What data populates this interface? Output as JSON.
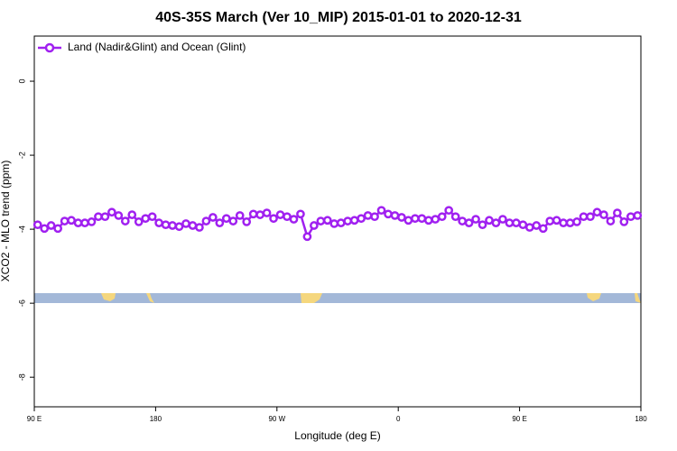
{
  "chart_data": {
    "type": "line",
    "title": "40S-35S March (Ver 10_MIP)   2015-01-01 to 2020-12-31",
    "xlabel": "Longitude (deg E)",
    "ylabel": "XCO2 - MLO trend (ppm)",
    "xlim": [
      90,
      540
    ],
    "ylim": [
      -8.8,
      1.22
    ],
    "xticks": [
      {
        "value": 90,
        "label": "90 E"
      },
      {
        "value": 180,
        "label": "180"
      },
      {
        "value": 270,
        "label": "90 W"
      },
      {
        "value": 360,
        "label": "0"
      },
      {
        "value": 450,
        "label": "90 E"
      },
      {
        "value": 540,
        "label": "180"
      }
    ],
    "yticks": [
      0,
      -2,
      -4,
      -6,
      -8
    ],
    "legend": "upper left",
    "x": [
      92.5,
      97.5,
      102.5,
      107.5,
      112.5,
      117.5,
      122.5,
      127.5,
      132.5,
      137.5,
      142.5,
      147.5,
      152.5,
      157.5,
      162.5,
      167.5,
      172.5,
      177.5,
      182.5,
      187.5,
      192.5,
      197.5,
      202.5,
      207.5,
      212.5,
      217.5,
      222.5,
      227.5,
      232.5,
      237.5,
      242.5,
      247.5,
      252.5,
      257.5,
      262.5,
      267.5,
      272.5,
      277.5,
      282.5,
      287.5,
      292.5,
      297.5,
      302.5,
      307.5,
      312.5,
      317.5,
      322.5,
      327.5,
      332.5,
      337.5,
      342.5,
      347.5,
      352.5,
      357.5,
      362.5,
      367.5,
      372.5,
      377.5,
      382.5,
      387.5,
      392.5,
      397.5,
      402.5,
      407.5,
      412.5,
      417.5,
      422.5,
      427.5,
      432.5,
      437.5,
      442.5,
      447.5,
      452.5,
      457.5,
      462.5,
      467.5,
      472.5,
      477.5,
      482.5,
      487.5,
      492.5,
      497.5,
      502.5,
      507.5,
      512.5,
      517.5,
      522.5,
      527.5,
      532.5,
      537.5
    ],
    "series": [
      {
        "name": "Land (Nadir&Glint) and Ocean (Glint)",
        "color": "#a020f0",
        "values": [
          -3.88,
          -3.98,
          -3.9,
          -3.98,
          -3.78,
          -3.76,
          -3.83,
          -3.83,
          -3.8,
          -3.66,
          -3.66,
          -3.54,
          -3.63,
          -3.78,
          -3.61,
          -3.8,
          -3.71,
          -3.66,
          -3.83,
          -3.88,
          -3.9,
          -3.93,
          -3.85,
          -3.9,
          -3.95,
          -3.78,
          -3.68,
          -3.83,
          -3.71,
          -3.78,
          -3.63,
          -3.8,
          -3.59,
          -3.61,
          -3.56,
          -3.71,
          -3.61,
          -3.66,
          -3.73,
          -3.59,
          -4.2,
          -3.9,
          -3.78,
          -3.76,
          -3.85,
          -3.83,
          -3.78,
          -3.76,
          -3.71,
          -3.63,
          -3.66,
          -3.49,
          -3.59,
          -3.63,
          -3.68,
          -3.76,
          -3.71,
          -3.71,
          -3.76,
          -3.73,
          -3.66,
          -3.49,
          -3.66,
          -3.78,
          -3.83,
          -3.73,
          -3.88,
          -3.76,
          -3.83,
          -3.73,
          -3.83,
          -3.83,
          -3.88,
          -3.95,
          -3.9,
          -3.98,
          -3.78,
          -3.76,
          -3.83,
          -3.83,
          -3.8,
          -3.66,
          -3.66,
          -3.54,
          -3.61,
          -3.78,
          -3.56,
          -3.8,
          -3.66,
          -3.63
        ]
      }
    ]
  }
}
